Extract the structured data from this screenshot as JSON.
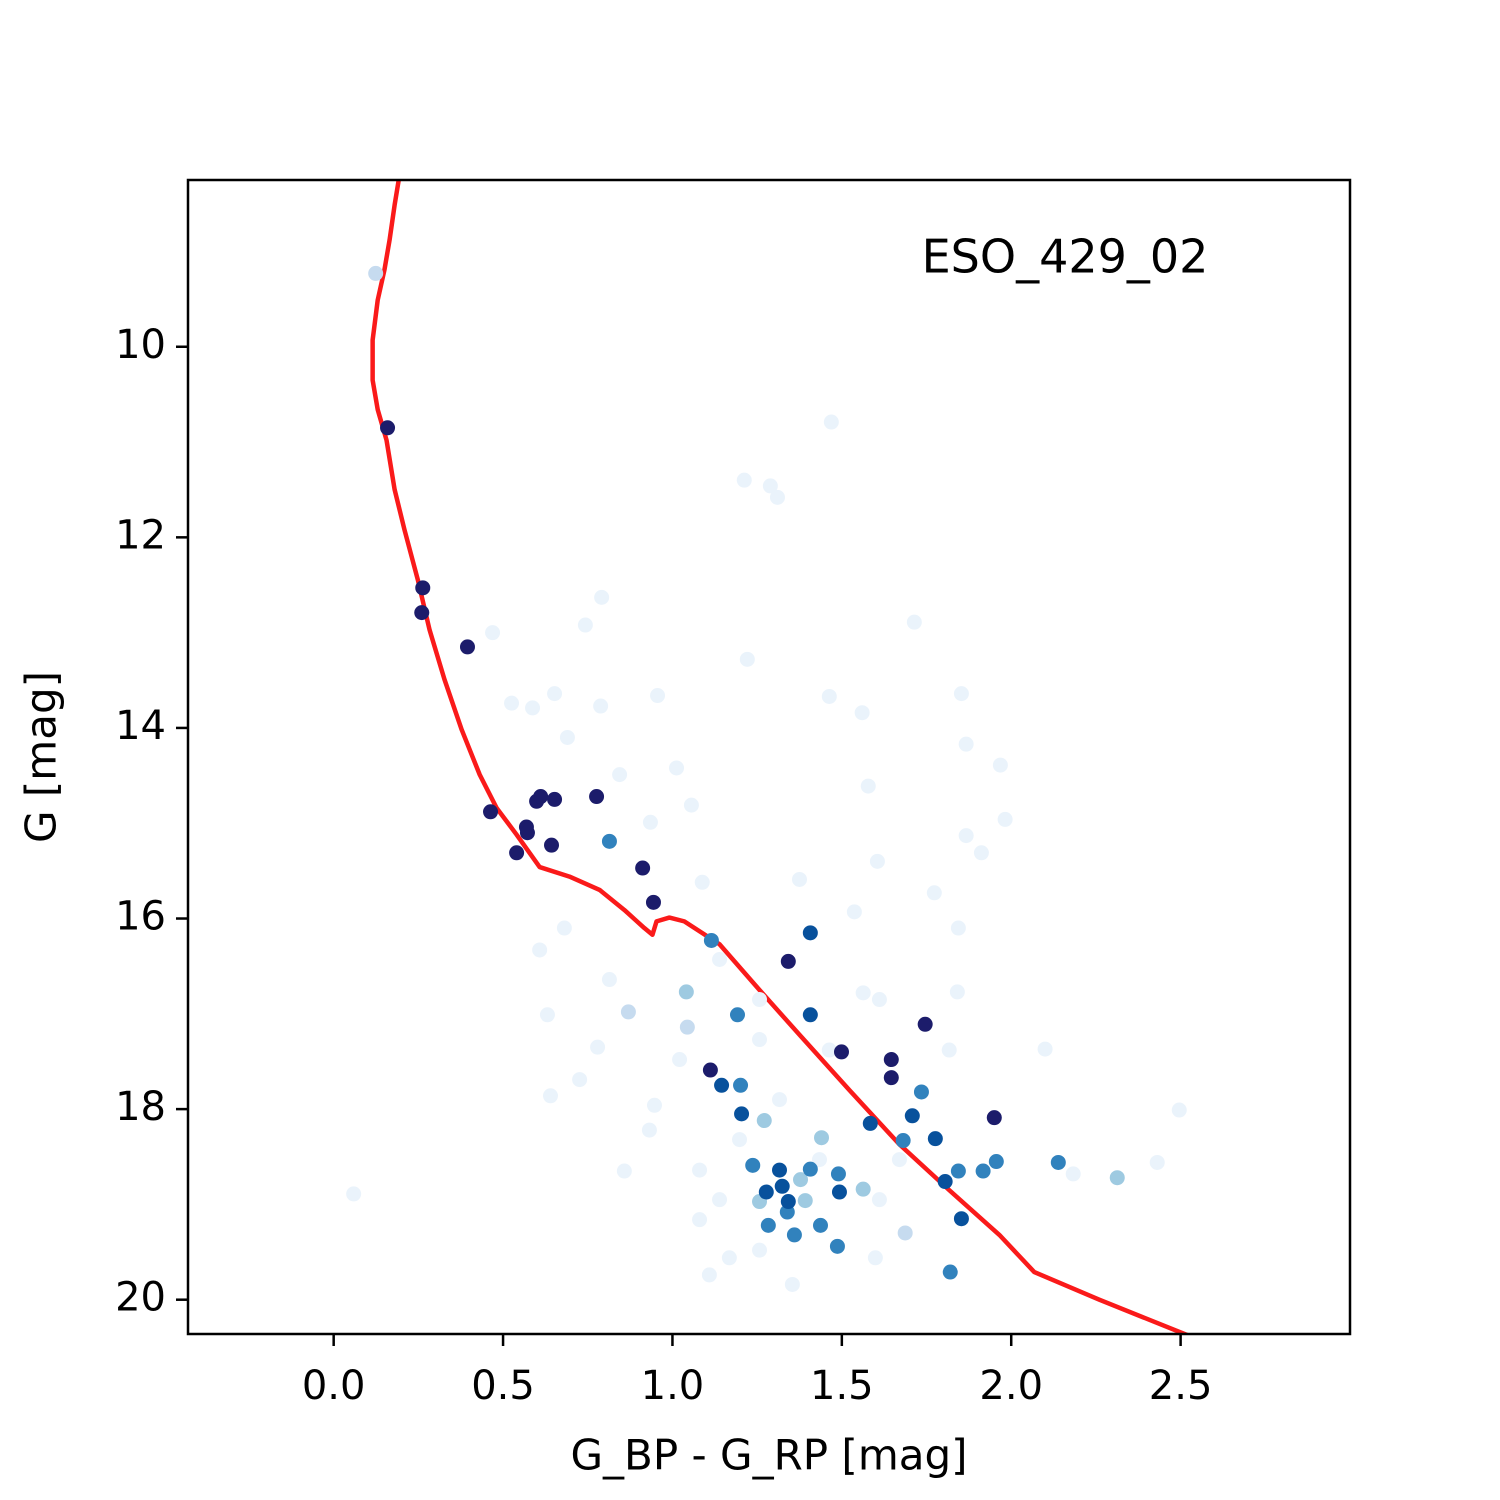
{
  "chart_data": {
    "type": "scatter",
    "annotation": "ESO_429_02",
    "xlabel": "G_BP - G_RP [mag]",
    "ylabel": "G [mag]",
    "xlim": [
      -0.43,
      3.0
    ],
    "ylim": [
      20.36,
      8.25
    ],
    "xticks": [
      {
        "value": 0,
        "label": "0.0"
      },
      0.5,
      {
        "value": 1,
        "label": "1.0"
      },
      1.5,
      {
        "value": 2,
        "label": "2.0"
      },
      2.5
    ],
    "yticks": [
      10,
      12,
      14,
      16,
      18,
      20
    ],
    "series": [
      {
        "type": "line",
        "color": "#fa1a1a",
        "x": [
          0.192,
          0.18,
          0.165,
          0.15,
          0.13,
          0.115,
          0.115,
          0.13,
          0.156,
          0.18,
          0.209,
          0.248,
          0.283,
          0.327,
          0.378,
          0.431,
          0.481,
          0.54,
          0.608,
          0.696,
          0.785,
          0.858,
          0.917,
          0.941,
          0.953,
          0.991,
          1.035,
          1.139,
          1.257,
          1.375,
          1.522,
          1.67,
          1.817,
          1.965,
          2.068,
          2.26,
          2.519
        ],
        "values": [
          8.25,
          8.51,
          8.88,
          9.19,
          9.51,
          9.93,
          10.35,
          10.66,
          10.98,
          11.5,
          11.92,
          12.44,
          12.97,
          13.49,
          14.02,
          14.49,
          14.84,
          15.12,
          15.46,
          15.56,
          15.7,
          15.91,
          16.1,
          16.17,
          16.03,
          15.99,
          16.03,
          16.27,
          16.75,
          17.22,
          17.8,
          18.37,
          18.85,
          19.32,
          19.71,
          20.0,
          20.37
        ]
      },
      {
        "color": "#eaf3fb",
        "x": [
          1.469,
          1.212,
          1.289,
          1.31,
          0.791,
          0.743,
          1.714,
          0.469,
          1.221,
          0.652,
          0.956,
          0.525,
          0.587,
          0.788,
          1.56,
          1.853,
          1.463,
          0.69,
          1.867,
          1.968,
          1.012,
          0.844,
          1.578,
          1.056,
          1.982,
          1.867,
          0.935,
          1.912,
          1.605,
          1.088,
          1.375,
          1.773,
          1.537,
          1.844,
          0.681,
          0.608,
          1.563,
          1.841,
          0.631,
          0.779,
          2.1,
          0.726,
          0.64,
          0.947,
          0.059,
          2.496,
          2.431,
          2.183,
          0.858,
          1.08,
          1.109,
          1.354,
          1.599,
          1.168,
          1.198,
          1.08,
          1.316,
          1.463,
          1.257,
          1.021,
          0.932,
          1.611,
          1.434,
          1.139,
          1.257,
          1.67,
          1.257,
          1.611,
          0.814,
          1.139,
          1.817
        ],
        "values": [
          10.79,
          11.4,
          11.46,
          11.58,
          12.63,
          12.92,
          12.89,
          13.0,
          13.28,
          13.64,
          13.66,
          13.74,
          13.79,
          13.77,
          13.84,
          13.64,
          13.67,
          14.1,
          14.17,
          14.39,
          14.42,
          14.49,
          14.61,
          14.81,
          14.96,
          15.13,
          14.99,
          15.31,
          15.4,
          15.62,
          15.59,
          15.73,
          15.93,
          16.1,
          16.1,
          16.33,
          16.78,
          16.77,
          17.01,
          17.35,
          17.37,
          17.69,
          17.86,
          17.96,
          18.89,
          18.01,
          18.56,
          18.68,
          18.65,
          18.64,
          19.74,
          19.84,
          19.56,
          19.56,
          18.32,
          19.16,
          17.9,
          17.38,
          17.27,
          17.48,
          18.22,
          18.95,
          18.53,
          18.95,
          19.48,
          18.53,
          16.85,
          16.85,
          16.64,
          16.43,
          17.38
        ]
      },
      {
        "color": "#c6dbef",
        "x": [
          0.124,
          0.87,
          1.044,
          1.687
        ],
        "values": [
          9.23,
          16.98,
          17.14,
          19.3
        ]
      },
      {
        "color": "#9ecae1",
        "x": [
          1.041,
          1.271,
          1.44,
          1.392,
          1.378,
          1.563,
          2.313,
          1.257
        ],
        "values": [
          16.77,
          18.12,
          18.3,
          18.96,
          18.74,
          18.84,
          18.72,
          18.97
        ]
      },
      {
        "color": "#3182bd",
        "x": [
          0.814,
          1.115,
          1.192,
          1.201,
          1.237,
          1.407,
          1.49,
          1.681,
          1.735,
          1.844,
          1.956,
          1.917,
          2.139,
          1.283,
          1.437,
          1.36,
          1.487,
          1.82,
          1.339
        ],
        "values": [
          15.19,
          16.23,
          17.01,
          17.75,
          18.59,
          18.63,
          18.68,
          18.33,
          17.82,
          18.65,
          18.55,
          18.65,
          18.56,
          19.22,
          19.22,
          19.32,
          19.44,
          19.71,
          19.08
        ]
      },
      {
        "color": "#08519c",
        "x": [
          1.407,
          1.407,
          1.145,
          1.204,
          1.584,
          1.708,
          1.776,
          1.316,
          1.324,
          1.277,
          1.493,
          1.342,
          1.805,
          1.853
        ],
        "values": [
          16.15,
          17.01,
          17.75,
          18.05,
          18.15,
          18.07,
          18.31,
          18.64,
          18.81,
          18.87,
          18.87,
          18.97,
          18.76,
          19.15
        ]
      },
      {
        "color": "#1c1c6b",
        "x": [
          0.159,
          0.263,
          0.26,
          0.395,
          0.463,
          0.569,
          0.572,
          0.54,
          0.599,
          0.611,
          0.652,
          0.643,
          0.776,
          0.912,
          0.944,
          1.342,
          1.646,
          1.646,
          1.746,
          1.499,
          1.95,
          1.112
        ],
        "values": [
          10.85,
          12.53,
          12.79,
          13.15,
          14.88,
          15.04,
          15.1,
          15.31,
          14.77,
          14.72,
          14.75,
          15.23,
          14.72,
          15.47,
          15.83,
          16.45,
          17.48,
          17.67,
          17.11,
          17.4,
          18.09,
          17.59
        ]
      }
    ]
  }
}
